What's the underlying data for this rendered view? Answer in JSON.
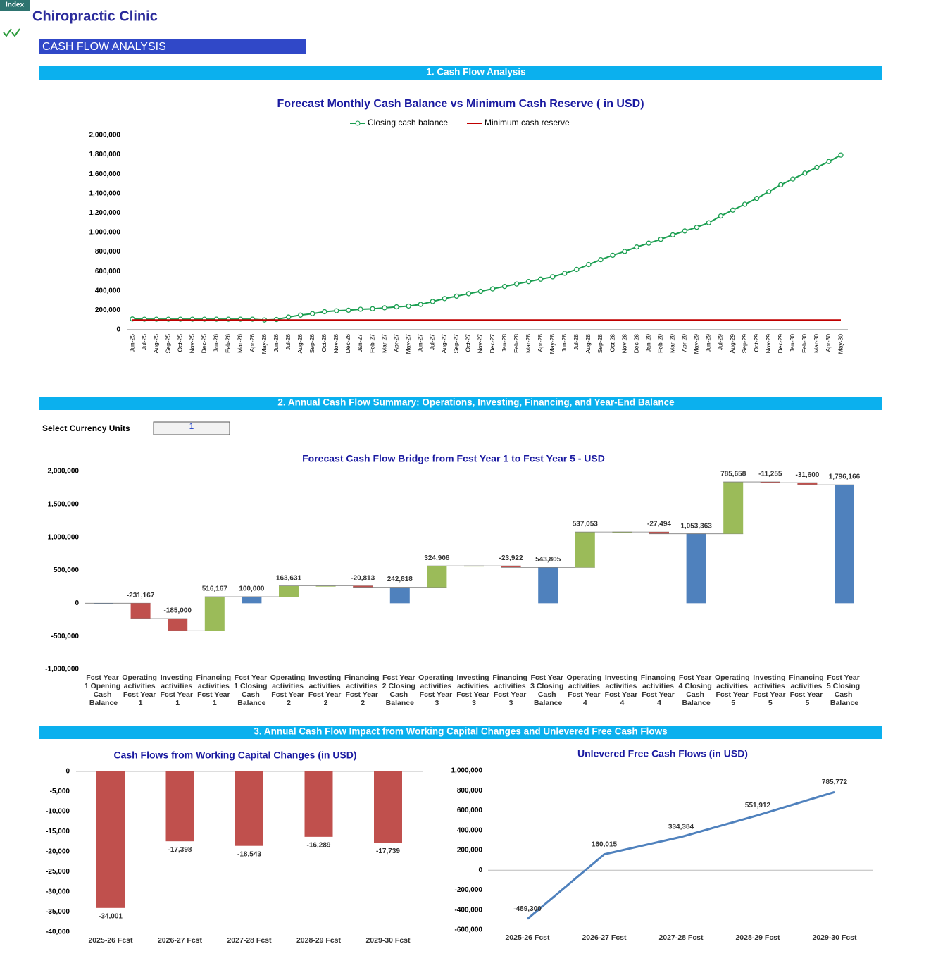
{
  "index_tab": "Index",
  "header": {
    "title": "Chiropractic Clinic",
    "section": "CASH FLOW ANALYSIS"
  },
  "sections": [
    "1. Cash Flow Analysis",
    "2. Annual Cash Flow Summary: Operations, Investing, Financing, and Year-End Balance",
    "3. Annual Cash Flow Impact from Working Capital Changes and Unlevered Free Cash Flows"
  ],
  "currency_selector": {
    "label": "Select Currency Units",
    "value": 1
  },
  "chart_data": [
    {
      "type": "line",
      "title": "Forecast Monthly Cash Balance vs Minimum Cash Reserve ( in USD)",
      "categories": [
        "Jun-25",
        "Jul-25",
        "Aug-25",
        "Sep-25",
        "Oct-25",
        "Nov-25",
        "Dec-25",
        "Jan-26",
        "Feb-26",
        "Mar-26",
        "Apr-26",
        "May-26",
        "Jun-26",
        "Jul-26",
        "Aug-26",
        "Sep-26",
        "Oct-26",
        "Nov-26",
        "Dec-26",
        "Jan-27",
        "Feb-27",
        "Mar-27",
        "Apr-27",
        "May-27",
        "Jun-27",
        "Jul-27",
        "Aug-27",
        "Sep-27",
        "Oct-27",
        "Nov-27",
        "Dec-27",
        "Jan-28",
        "Feb-28",
        "Mar-28",
        "Apr-28",
        "May-28",
        "Jun-28",
        "Jul-28",
        "Aug-28",
        "Sep-28",
        "Oct-28",
        "Nov-28",
        "Dec-28",
        "Jan-29",
        "Feb-29",
        "Mar-29",
        "Apr-29",
        "May-29",
        "Jun-29",
        "Jul-29",
        "Aug-29",
        "Sep-29",
        "Oct-29",
        "Nov-29",
        "Dec-29",
        "Jan-30",
        "Feb-30",
        "Mar-30",
        "Apr-30",
        "May-30"
      ],
      "series": [
        {
          "name": "Closing cash balance",
          "color": "#1a9e50",
          "markers": true,
          "values": [
            110000,
            108000,
            108000,
            108000,
            108000,
            108000,
            108000,
            108000,
            108000,
            108000,
            108000,
            100000,
            105000,
            130000,
            150000,
            165000,
            185000,
            195000,
            200000,
            210000,
            215000,
            225000,
            235000,
            243000,
            260000,
            290000,
            320000,
            345000,
            370000,
            395000,
            420000,
            445000,
            470000,
            495000,
            520000,
            544000,
            580000,
            620000,
            670000,
            720000,
            765000,
            805000,
            850000,
            890000,
            930000,
            975000,
            1015000,
            1053000,
            1100000,
            1170000,
            1230000,
            1290000,
            1350000,
            1420000,
            1490000,
            1550000,
            1610000,
            1670000,
            1730000,
            1796000
          ]
        },
        {
          "name": "Minimum cash reserve",
          "color": "#c00000",
          "markers": false,
          "values": [
            100000,
            100000,
            100000,
            100000,
            100000,
            100000,
            100000,
            100000,
            100000,
            100000,
            100000,
            100000,
            100000,
            100000,
            100000,
            100000,
            100000,
            100000,
            100000,
            100000,
            100000,
            100000,
            100000,
            100000,
            100000,
            100000,
            100000,
            100000,
            100000,
            100000,
            100000,
            100000,
            100000,
            100000,
            100000,
            100000,
            100000,
            100000,
            100000,
            100000,
            100000,
            100000,
            100000,
            100000,
            100000,
            100000,
            100000,
            100000,
            100000,
            100000,
            100000,
            100000,
            100000,
            100000,
            100000,
            100000,
            100000,
            100000,
            100000,
            100000
          ]
        }
      ],
      "ylim": [
        0,
        2000000
      ],
      "yticks": [
        0,
        {
          "value": 200000,
          "label": "200,000"
        },
        {
          "value": 400000,
          "label": "400,000"
        },
        {
          "value": 600000,
          "label": "600,000"
        },
        {
          "value": 800000,
          "label": "800,000"
        },
        {
          "value": 1000000,
          "label": "1,000,000"
        },
        {
          "value": 1200000,
          "label": "1,200,000"
        },
        {
          "value": 1400000,
          "label": "1,400,000"
        },
        {
          "value": 1600000,
          "label": "1,600,000"
        },
        {
          "value": 1800000,
          "label": "1,800,000"
        },
        {
          "value": 2000000,
          "label": "2,000,000"
        }
      ],
      "legend": "top"
    },
    {
      "type": "waterfall",
      "title": "Forecast Cash Flow Bridge from Fcst Year 1 to Fcst Year 5 - USD",
      "categories": [
        "Fcst Year 1 Opening Cash Balance",
        "Operating activities Fcst Year 1",
        "Investing activities Fcst Year 1",
        "Financing activities Fcst Year 1",
        "Fcst Year 1 Closing Cash Balance",
        "Operating activities Fcst Year 2",
        "Investing activities Fcst Year 2",
        "Financing activities Fcst Year 2",
        "Fcst Year 2 Closing Cash Balance",
        "Operating activities Fcst Year 3",
        "Investing activities Fcst Year 3",
        "Financing activities Fcst Year 3",
        "Fcst Year 3 Closing Cash Balance",
        "Operating activities Fcst Year 4",
        "Investing activities Fcst Year 4",
        "Financing activities Fcst Year 4",
        "Fcst Year 4 Closing Cash Balance",
        "Operating activities Fcst Year 5",
        "Investing activities Fcst Year 5",
        "Financing activities Fcst Year 5",
        "Fcst Year 5 Closing Cash Balance"
      ],
      "values": [
        0,
        -231167,
        -185000,
        516167,
        100000,
        163631,
        0,
        -20813,
        242818,
        324908,
        0,
        -23922,
        543805,
        537053,
        0,
        -27494,
        1053363,
        785658,
        -11255,
        -31600,
        1796166
      ],
      "value_labels": [
        null,
        "-231,167",
        "-185,000",
        "516,167",
        "100,000",
        "163,631",
        null,
        "-20,813",
        "242,818",
        "324,908",
        null,
        "-23,922",
        "543,805",
        "537,053",
        null,
        "-27,494",
        "1,053,363",
        "785,658",
        "-11,255",
        "-31,600",
        "1,796,166"
      ],
      "totals": [
        0,
        4,
        8,
        12,
        16,
        20
      ],
      "colors": {
        "increase": "#9bbb59",
        "decrease": "#c0504d",
        "total": "#4f81bd"
      },
      "ylim": [
        -1000000,
        2000000
      ],
      "yticks": [
        {
          "value": -1000000,
          "label": "-1,000,000"
        },
        {
          "value": -500000,
          "label": "-500,000"
        },
        0,
        {
          "value": 500000,
          "label": "500,000"
        },
        {
          "value": 1000000,
          "label": "1,000,000"
        },
        {
          "value": 1500000,
          "label": "1,500,000"
        },
        {
          "value": 2000000,
          "label": "2,000,000"
        }
      ]
    },
    {
      "type": "bar",
      "title": "Cash Flows from Working Capital Changes (in USD)",
      "categories": [
        "2025-26 Fcst",
        "2026-27 Fcst",
        "2027-28 Fcst",
        "2028-29 Fcst",
        "2029-30 Fcst"
      ],
      "values": [
        -34001,
        -17398,
        -18543,
        -16289,
        -17739
      ],
      "value_labels": [
        "-34,001",
        "-17,398",
        "-18,543",
        "-16,289",
        "-17,739"
      ],
      "color": "#c0504d",
      "ylim": [
        -40000,
        0
      ],
      "yticks": [
        0,
        {
          "value": -5000,
          "label": "-5,000"
        },
        {
          "value": -10000,
          "label": "-10,000"
        },
        {
          "value": -15000,
          "label": "-15,000"
        },
        {
          "value": -20000,
          "label": "-20,000"
        },
        {
          "value": -25000,
          "label": "-25,000"
        },
        {
          "value": -30000,
          "label": "-30,000"
        },
        {
          "value": -35000,
          "label": "-35,000"
        },
        {
          "value": -40000,
          "label": "-40,000"
        }
      ]
    },
    {
      "type": "line",
      "title": "Unlevered Free Cash Flows (in USD)",
      "categories": [
        "2025-26 Fcst",
        "2026-27 Fcst",
        "2027-28 Fcst",
        "2028-29 Fcst",
        "2029-30 Fcst"
      ],
      "values": [
        -489300,
        160015,
        334384,
        551912,
        785772
      ],
      "value_labels": [
        "-489,300",
        "160,015",
        "334,384",
        "551,912",
        "785,772"
      ],
      "color": "#4f81bd",
      "ylim": [
        -600000,
        1000000
      ],
      "yticks": [
        {
          "value": -600000,
          "label": "-600,000"
        },
        {
          "value": -400000,
          "label": "-400,000"
        },
        {
          "value": -200000,
          "label": "-200,000"
        },
        0,
        {
          "value": 200000,
          "label": "200,000"
        },
        {
          "value": 400000,
          "label": "400,000"
        },
        {
          "value": 600000,
          "label": "600,000"
        },
        {
          "value": 800000,
          "label": "800,000"
        },
        {
          "value": 1000000,
          "label": "1,000,000"
        }
      ]
    }
  ]
}
